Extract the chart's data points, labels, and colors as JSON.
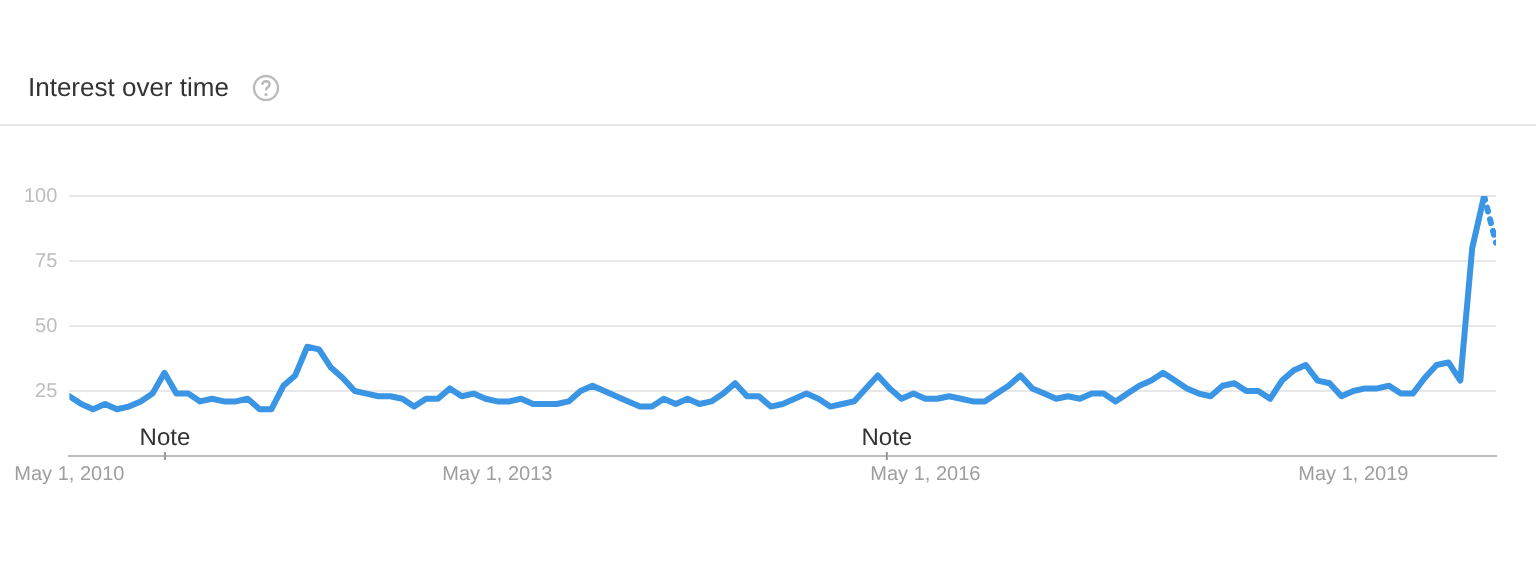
{
  "chart_data": {
    "type": "line",
    "title": "Interest over time",
    "series": [
      {
        "color": "#3a95e4",
        "x": [
          "2010-05",
          "2010-06",
          "2010-07",
          "2010-08",
          "2010-09",
          "2010-10",
          "2010-11",
          "2010-12",
          "2011-01",
          "2011-02",
          "2011-03",
          "2011-04",
          "2011-05",
          "2011-06",
          "2011-07",
          "2011-08",
          "2011-09",
          "2011-10",
          "2011-11",
          "2011-12",
          "2012-01",
          "2012-02",
          "2012-03",
          "2012-04",
          "2012-05",
          "2012-06",
          "2012-07",
          "2012-08",
          "2012-09",
          "2012-10",
          "2012-11",
          "2012-12",
          "2013-01",
          "2013-02",
          "2013-03",
          "2013-04",
          "2013-05",
          "2013-06",
          "2013-07",
          "2013-08",
          "2013-09",
          "2013-10",
          "2013-11",
          "2013-12",
          "2014-01",
          "2014-02",
          "2014-03",
          "2014-04",
          "2014-05",
          "2014-06",
          "2014-07",
          "2014-08",
          "2014-09",
          "2014-10",
          "2014-11",
          "2014-12",
          "2015-01",
          "2015-02",
          "2015-03",
          "2015-04",
          "2015-05",
          "2015-06",
          "2015-07",
          "2015-08",
          "2015-09",
          "2015-10",
          "2015-11",
          "2015-12",
          "2016-01",
          "2016-02",
          "2016-03",
          "2016-04",
          "2016-05",
          "2016-06",
          "2016-07",
          "2016-08",
          "2016-09",
          "2016-10",
          "2016-11",
          "2016-12",
          "2017-01",
          "2017-02",
          "2017-03",
          "2017-04",
          "2017-05",
          "2017-06",
          "2017-07",
          "2017-08",
          "2017-09",
          "2017-10",
          "2017-11",
          "2017-12",
          "2018-01",
          "2018-02",
          "2018-03",
          "2018-04",
          "2018-05",
          "2018-06",
          "2018-07",
          "2018-08",
          "2018-09",
          "2018-10",
          "2018-11",
          "2018-12",
          "2019-01",
          "2019-02",
          "2019-03",
          "2019-04",
          "2019-05",
          "2019-06",
          "2019-07",
          "2019-08",
          "2019-09",
          "2019-10",
          "2019-11",
          "2019-12",
          "2020-01",
          "2020-02",
          "2020-03",
          "2020-04"
        ],
        "values": [
          23,
          20,
          18,
          20,
          18,
          19,
          21,
          24,
          32,
          24,
          24,
          21,
          22,
          21,
          21,
          22,
          18,
          18,
          27,
          31,
          42,
          41,
          34,
          30,
          25,
          24,
          23,
          23,
          22,
          19,
          22,
          22,
          26,
          23,
          24,
          22,
          21,
          21,
          22,
          20,
          20,
          20,
          21,
          25,
          27,
          25,
          23,
          21,
          19,
          19,
          22,
          20,
          22,
          20,
          21,
          24,
          28,
          23,
          23,
          19,
          20,
          22,
          24,
          22,
          19,
          20,
          21,
          26,
          31,
          26,
          22,
          24,
          22,
          22,
          23,
          22,
          21,
          21,
          24,
          27,
          31,
          26,
          24,
          22,
          23,
          22,
          24,
          24,
          21,
          24,
          27,
          29,
          32,
          29,
          26,
          24,
          23,
          27,
          28,
          25,
          25,
          22,
          29,
          33,
          35,
          29,
          28,
          23,
          25,
          26,
          26,
          27,
          24,
          24,
          30,
          35,
          36,
          29,
          80,
          100
        ]
      },
      {
        "color": "#3a95e4",
        "line_style": "dotted",
        "x": [
          "2020-04",
          "2020-05"
        ],
        "values": [
          100,
          82
        ]
      }
    ],
    "xlim": [
      "2010-05",
      "2020-05"
    ],
    "xticks": [
      {
        "value": "2010-05-01",
        "label": "May 1, 2010"
      },
      {
        "value": "2013-05-01",
        "label": "May 1, 2013"
      },
      {
        "value": "2016-05-01",
        "label": "May 1, 2016"
      },
      {
        "value": "2019-05-01",
        "label": "May 1, 2019"
      }
    ],
    "ylim": [
      0,
      100
    ],
    "yticks": [
      25,
      50,
      75,
      100
    ],
    "grid": "y",
    "annotations": [
      "Note",
      "Note"
    ]
  }
}
